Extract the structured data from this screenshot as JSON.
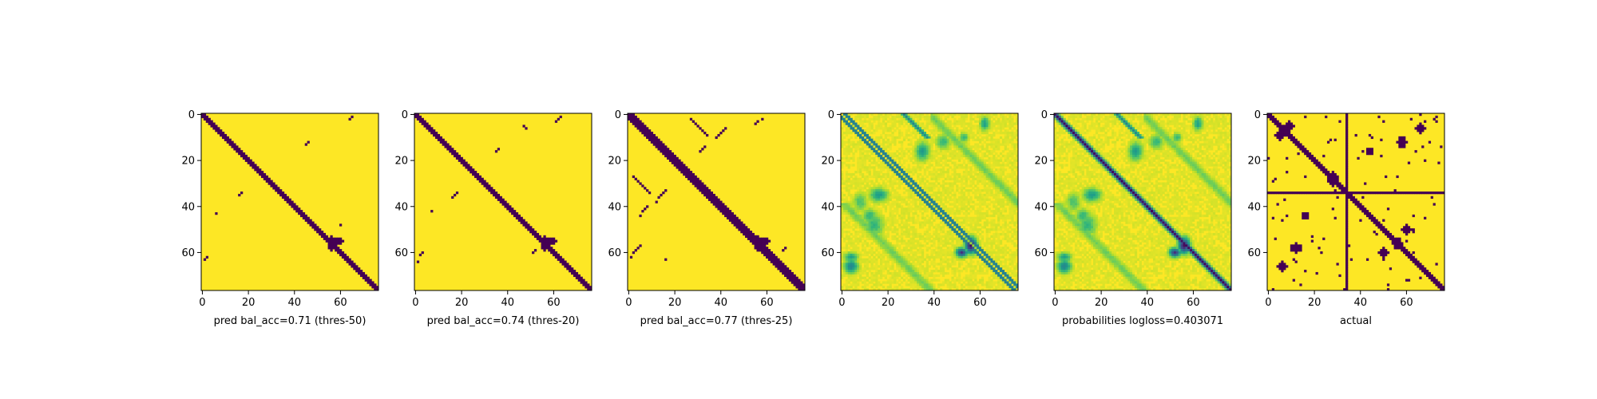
{
  "figure": {
    "background": "#ffffff",
    "colormap": "viridis",
    "binary_colors": {
      "low": "#440154",
      "high": "#fde725"
    }
  },
  "chart_data": [
    {
      "type": "heatmap",
      "xlabel": "pred bal_acc=0.71 (thres-50)",
      "size": 77,
      "xticks": [
        "0",
        "20",
        "40",
        "60"
      ],
      "yticks": [
        "0",
        "20",
        "40",
        "60"
      ],
      "values_kind": "binary",
      "grid": false
    },
    {
      "type": "heatmap",
      "xlabel": "pred bal_acc=0.74 (thres-20)",
      "size": 77,
      "xticks": [
        "0",
        "20",
        "40",
        "60"
      ],
      "yticks": [
        "0",
        "20",
        "40",
        "60"
      ],
      "values_kind": "binary",
      "grid": false
    },
    {
      "type": "heatmap",
      "xlabel": "pred bal_acc=0.77 (thres-25)",
      "size": 77,
      "xticks": [
        "0",
        "20",
        "40",
        "60"
      ],
      "yticks": [
        "0",
        "20",
        "40",
        "60"
      ],
      "values_kind": "binary",
      "grid": false
    },
    {
      "type": "heatmap",
      "xlabel": "",
      "size": 77,
      "xticks": [
        "0",
        "20",
        "40",
        "60"
      ],
      "yticks": [
        "0",
        "20",
        "40",
        "60"
      ],
      "values_kind": "continuous",
      "grid": false
    },
    {
      "type": "heatmap",
      "xlabel": "probabilities logloss=0.403071",
      "size": 77,
      "xticks": [
        "0",
        "20",
        "40",
        "60"
      ],
      "yticks": [
        "0",
        "20",
        "40",
        "60"
      ],
      "values_kind": "continuous",
      "grid": false
    },
    {
      "type": "heatmap",
      "xlabel": "actual",
      "size": 77,
      "xticks": [
        "0",
        "20",
        "40",
        "60"
      ],
      "yticks": [
        "0",
        "20",
        "40",
        "60"
      ],
      "values_kind": "binary",
      "grid": false
    }
  ]
}
